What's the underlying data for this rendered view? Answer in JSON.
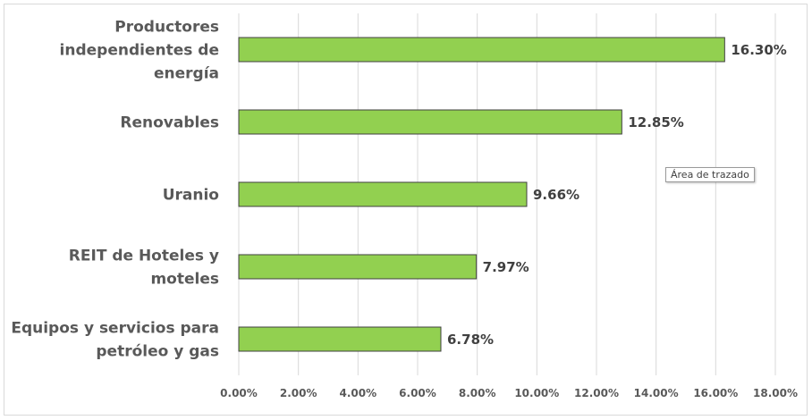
{
  "tooltip": {
    "text": "Área de trazado"
  },
  "chart_data": {
    "type": "bar",
    "orientation": "horizontal",
    "categories": [
      [
        "Productores",
        "independientes de",
        "energía"
      ],
      [
        "Renovables"
      ],
      [
        "Uranio"
      ],
      [
        "REIT de Hoteles y",
        "moteles"
      ],
      [
        "Equipos y servicios para",
        "petróleo y gas"
      ]
    ],
    "values": [
      16.3,
      12.85,
      9.66,
      7.97,
      6.78
    ],
    "value_labels": [
      "16.30%",
      "12.85%",
      "9.66%",
      "7.97%",
      "6.78%"
    ],
    "xlim": [
      0,
      18
    ],
    "x_ticks": [
      "0.00%",
      "2.00%",
      "4.00%",
      "6.00%",
      "8.00%",
      "10.00%",
      "12.00%",
      "14.00%",
      "16.00%",
      "18.00%"
    ],
    "gridlines": true,
    "bar_color": "#92d050",
    "bar_border": "#404040",
    "grid_color": "#d9d9d9"
  }
}
